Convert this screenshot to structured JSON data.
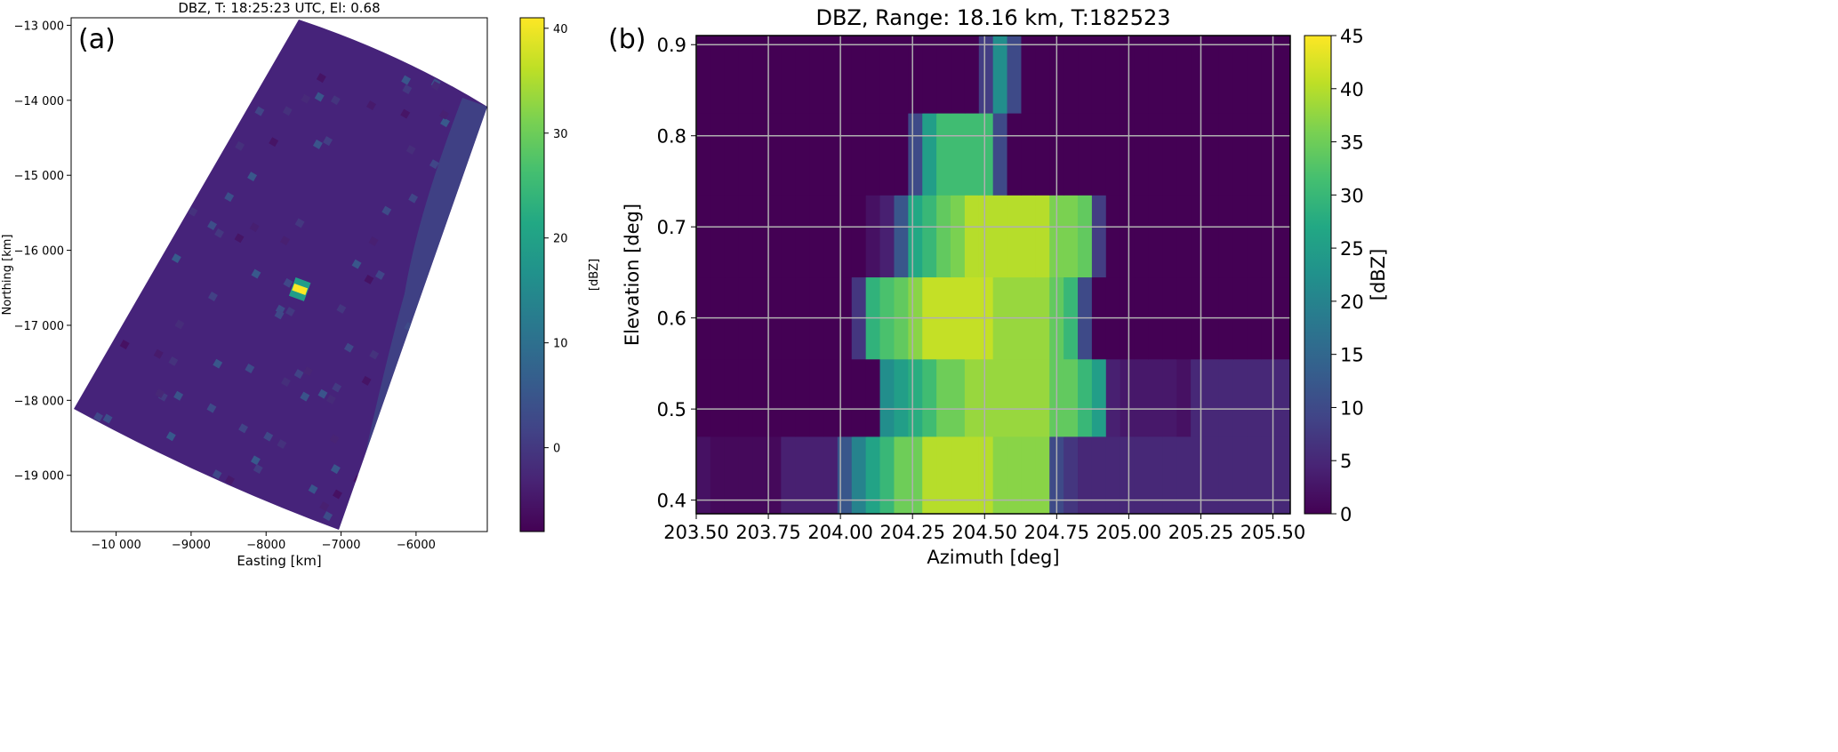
{
  "chart_data": [
    {
      "type": "heatmap",
      "panel_label": "(a)",
      "title": "DBZ, T: 18:25:23 UTC, El: 0.68",
      "xlabel": "Easting [km]",
      "ylabel": "Northing [km]",
      "xlim": [
        -10600,
        -5050
      ],
      "ylim": [
        -19750,
        -12900
      ],
      "xticks": [
        -10000,
        -9000,
        -8000,
        -7000,
        -6000
      ],
      "xtick_labels": [
        "−10 000",
        "−9000",
        "−8000",
        "−7000",
        "−6000"
      ],
      "yticks": [
        -13000,
        -14000,
        -15000,
        -16000,
        -17000,
        -18000,
        -19000
      ],
      "ytick_labels": [
        "−13 000",
        "−14 000",
        "−15 000",
        "−16 000",
        "−17 000",
        "−18 000",
        "−19 000"
      ],
      "colorbar": {
        "label": "[dBZ]",
        "range": [
          -8,
          41
        ],
        "ticks": [
          0,
          10,
          20,
          30,
          40
        ],
        "tick_labels": [
          "0",
          "10",
          "20",
          "30",
          "40"
        ]
      },
      "background_dbz": -4,
      "features": [
        {
          "name": "target",
          "easting": -7550,
          "northing": -16520,
          "dbz": 41
        },
        {
          "name": "clutter-band",
          "dbz": 3
        }
      ]
    },
    {
      "type": "heatmap",
      "panel_label": "(b)",
      "title": "DBZ, Range: 18.16 km, T:182523",
      "xlabel": "Azimuth [deg]",
      "ylabel": "Elevation [deg]",
      "xlim": [
        203.5,
        205.56
      ],
      "ylim": [
        0.385,
        0.91
      ],
      "grid": true,
      "xticks": [
        203.5,
        203.75,
        204.0,
        204.25,
        204.5,
        204.75,
        205.0,
        205.25,
        205.5
      ],
      "xtick_labels": [
        "203.50",
        "203.75",
        "204.00",
        "204.25",
        "204.50",
        "204.75",
        "205.00",
        "205.25",
        "205.50"
      ],
      "yticks": [
        0.4,
        0.5,
        0.6,
        0.7,
        0.8,
        0.9
      ],
      "ytick_labels": [
        "0.4",
        "0.5",
        "0.6",
        "0.7",
        "0.8",
        "0.9"
      ],
      "colorbar": {
        "label": "[dBZ]",
        "range": [
          0,
          45
        ],
        "ticks": [
          0,
          5,
          10,
          15,
          20,
          25,
          30,
          35,
          40,
          45
        ],
        "tick_labels": [
          "0",
          "5",
          "10",
          "15",
          "20",
          "25",
          "30",
          "35",
          "40",
          "45"
        ]
      },
      "azimuth_start": 203.5,
      "azimuth_step": 0.049,
      "elevation_bins": [
        {
          "lo": 0.385,
          "hi": 0.47,
          "values": [
            2,
            1,
            1,
            1,
            1,
            1,
            4,
            4,
            4,
            4,
            12,
            20,
            26,
            30,
            35,
            35,
            40,
            40,
            40,
            40,
            40,
            37,
            37,
            37,
            37,
            10,
            7,
            5,
            5,
            5,
            5,
            5,
            5,
            5,
            5,
            5,
            5,
            5,
            5,
            5,
            5,
            5
          ]
        },
        {
          "lo": 0.47,
          "hi": 0.555,
          "values": [
            0,
            0,
            0,
            0,
            0,
            0,
            0,
            0,
            0,
            0,
            0,
            0,
            0,
            22,
            25,
            28,
            31,
            35,
            35,
            38,
            38,
            38,
            38,
            38,
            38,
            34,
            34,
            30,
            25,
            4,
            3,
            3,
            3,
            3,
            2,
            5,
            5,
            5,
            5,
            5,
            5,
            5
          ]
        },
        {
          "lo": 0.555,
          "hi": 0.645,
          "values": [
            0,
            0,
            0,
            0,
            0,
            0,
            0,
            0,
            0,
            0,
            0,
            7,
            29,
            32,
            34,
            37,
            41,
            41,
            41,
            41,
            41,
            38,
            38,
            38,
            38,
            34,
            30,
            10,
            0,
            0,
            0,
            0,
            0,
            0,
            0,
            0,
            0,
            0,
            0,
            0,
            0,
            0
          ]
        },
        {
          "lo": 0.645,
          "hi": 0.735,
          "values": [
            0,
            0,
            0,
            0,
            0,
            0,
            0,
            0,
            0,
            0,
            0,
            0,
            2,
            4,
            12,
            27,
            30,
            34,
            36,
            40,
            40,
            40,
            40,
            40,
            40,
            36,
            36,
            34,
            8,
            0,
            0,
            0,
            0,
            0,
            0,
            0,
            0,
            0,
            0,
            0,
            0,
            0
          ]
        },
        {
          "lo": 0.735,
          "hi": 0.825,
          "values": [
            0,
            0,
            0,
            0,
            0,
            0,
            0,
            0,
            0,
            0,
            0,
            0,
            0,
            0,
            0,
            10,
            25,
            31,
            31,
            31,
            31,
            10,
            0,
            0,
            0,
            0,
            0,
            0,
            0,
            0,
            0,
            0,
            0,
            0,
            0,
            0,
            0,
            0,
            0,
            0,
            0,
            0
          ]
        },
        {
          "lo": 0.825,
          "hi": 0.91,
          "values": [
            0,
            0,
            0,
            0,
            0,
            0,
            0,
            0,
            0,
            0,
            0,
            0,
            0,
            0,
            0,
            0,
            0,
            0,
            0,
            0,
            8,
            22,
            10,
            0,
            0,
            0,
            0,
            0,
            0,
            0,
            0,
            0,
            0,
            0,
            0,
            0,
            0,
            0,
            0,
            0,
            0,
            0
          ]
        }
      ]
    }
  ]
}
